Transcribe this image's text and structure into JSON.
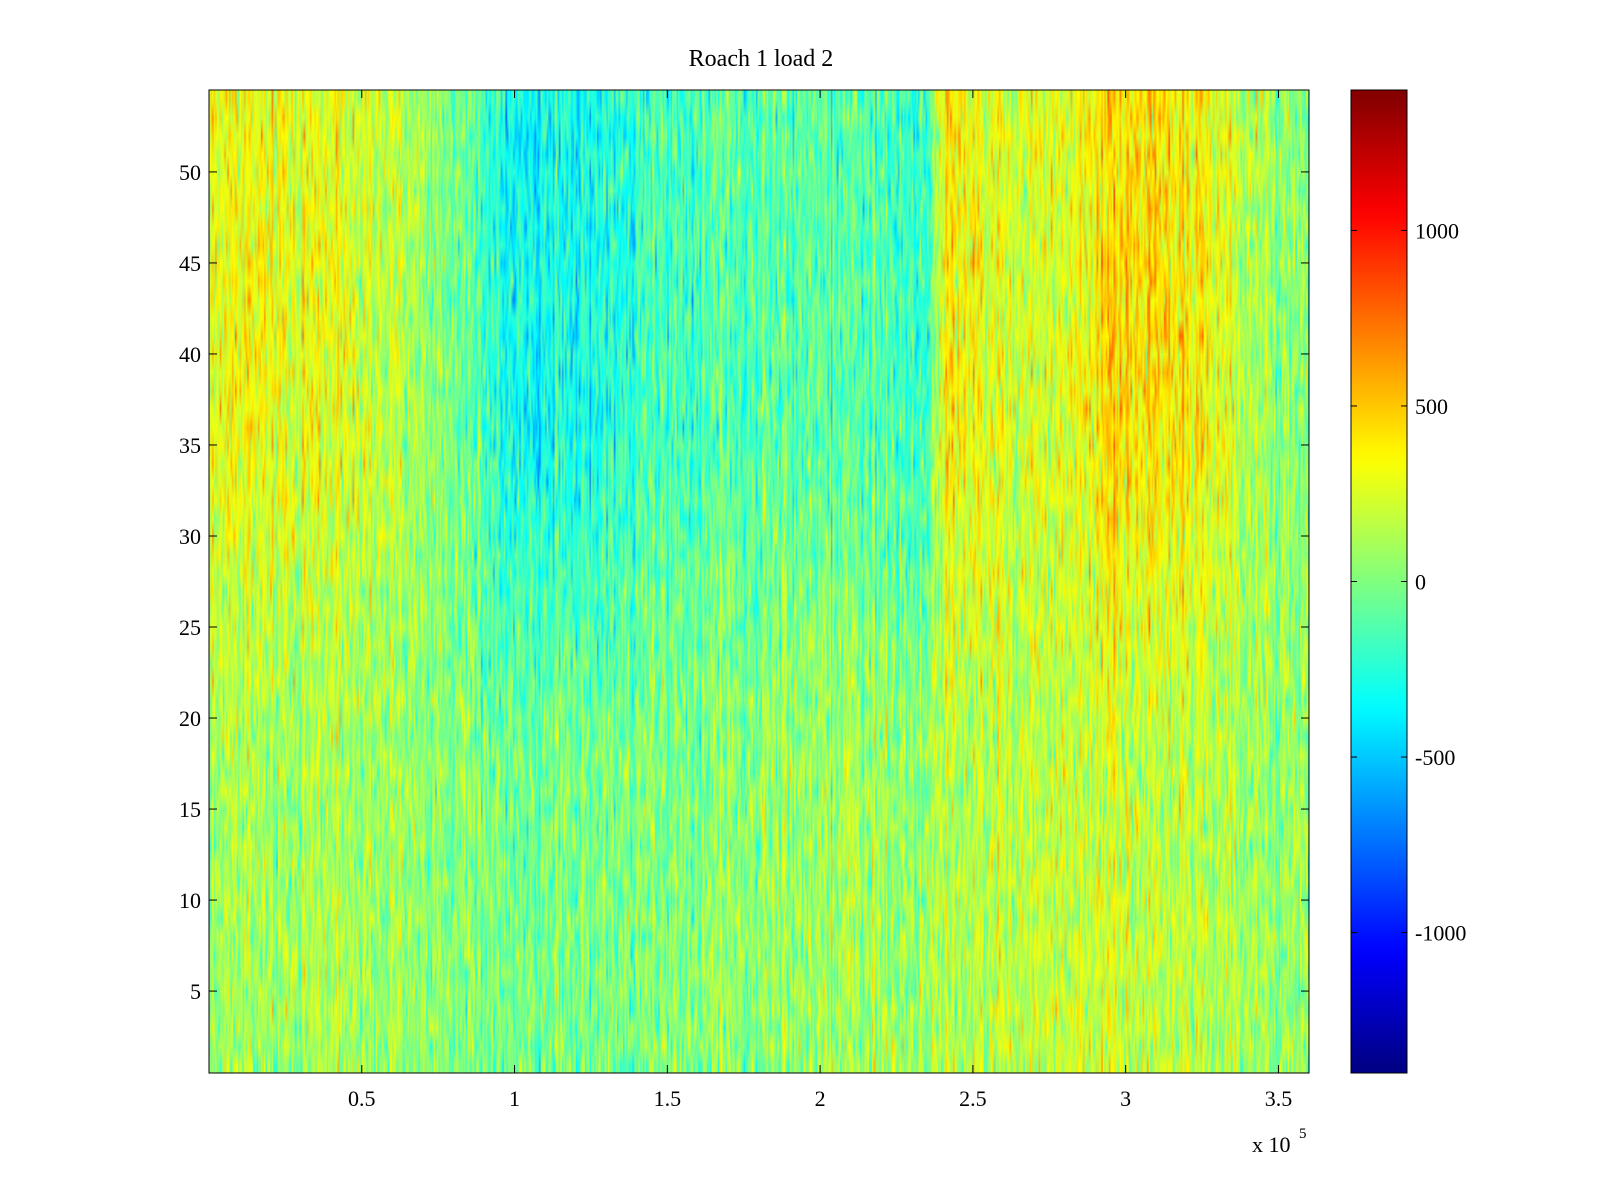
{
  "chart_data": {
    "type": "heatmap",
    "title": "Roach 1 load 2",
    "xlabel": "",
    "ylabel": "",
    "x_multiplier_label": "x 10",
    "x_multiplier_exponent": "5",
    "xlim": [
      0,
      3.6
    ],
    "ylim": [
      0.5,
      54.5
    ],
    "x_ticks": [
      0.5,
      1,
      1.5,
      2,
      2.5,
      3,
      3.5
    ],
    "x_tick_labels": [
      "0.5",
      "1",
      "1.5",
      "2",
      "2.5",
      "3",
      "3.5"
    ],
    "y_ticks": [
      5,
      10,
      15,
      20,
      25,
      30,
      35,
      40,
      45,
      50
    ],
    "y_tick_labels": [
      "5",
      "10",
      "15",
      "20",
      "25",
      "30",
      "35",
      "40",
      "45",
      "50"
    ],
    "rows": 54,
    "colorbar": {
      "colormap": "jet",
      "range": [
        -1400,
        1400
      ],
      "ticks": [
        -1000,
        -500,
        0,
        500,
        1000
      ],
      "tick_labels": [
        "-1000",
        "-500",
        "0",
        "500",
        "1000"
      ]
    },
    "column_profile": {
      "x": [
        0,
        0.2,
        0.5,
        0.8,
        1.0,
        1.2,
        1.5,
        1.8,
        2.0,
        2.2,
        2.35,
        2.42,
        2.6,
        2.8,
        2.95,
        3.1,
        3.25,
        3.4,
        3.6
      ],
      "upper_rows_mean": [
        300,
        320,
        250,
        0,
        -350,
        -330,
        -150,
        -100,
        -120,
        -150,
        -200,
        450,
        200,
        250,
        450,
        450,
        350,
        150,
        0
      ],
      "lower_rows_mean": [
        100,
        120,
        110,
        30,
        -50,
        -40,
        0,
        60,
        80,
        80,
        60,
        200,
        150,
        200,
        220,
        200,
        150,
        100,
        50
      ]
    },
    "grid": false,
    "legend": "colorbar-right"
  }
}
